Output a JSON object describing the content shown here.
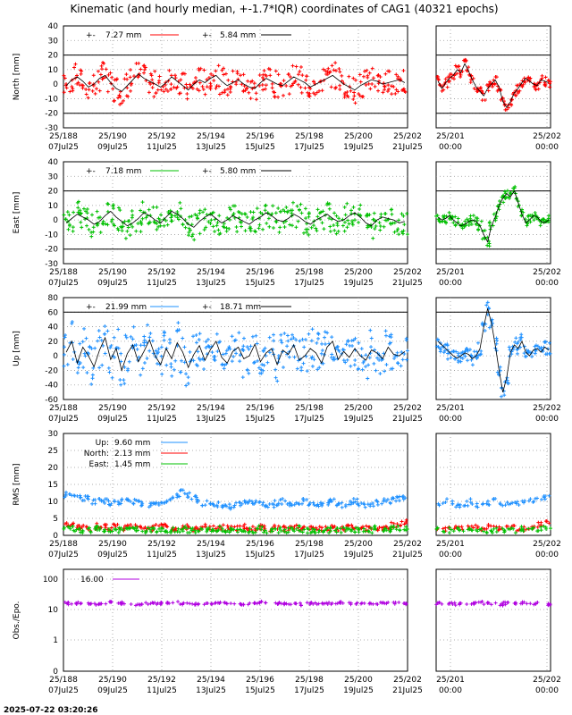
{
  "title": "Kinematic (and hourly median, +-1.7*IQR) coordinates of CAG1 (40321 epochs)",
  "timestamp": "2025-07-22 03:20:26",
  "colors": {
    "north": "#ff0000",
    "east": "#00c000",
    "up": "#1e90ff",
    "obs": "#b000e0",
    "median": "#000000"
  },
  "x_ticks_main": [
    {
      "doy": "25/188",
      "date": "07Jul25"
    },
    {
      "doy": "25/190",
      "date": "09Jul25"
    },
    {
      "doy": "25/192",
      "date": "11Jul25"
    },
    {
      "doy": "25/194",
      "date": "13Jul25"
    },
    {
      "doy": "25/196",
      "date": "15Jul25"
    },
    {
      "doy": "25/198",
      "date": "17Jul25"
    },
    {
      "doy": "25/200",
      "date": "19Jul25"
    },
    {
      "doy": "25/202",
      "date": "21Jul25"
    }
  ],
  "x_ticks_zoom": [
    {
      "doy": "25/201",
      "time": "00:00"
    },
    {
      "doy": "25/202",
      "time": "00:00"
    }
  ],
  "chart_data": [
    {
      "type": "scatter",
      "panel": "north",
      "ylabel": "North [mm]",
      "ylim": [
        -30,
        40
      ],
      "yticks": [
        "40",
        "30",
        "20",
        "10",
        "0",
        "-10",
        "-20",
        "-30"
      ],
      "xlim_days": [
        188,
        202
      ],
      "zoom_xlim_days": [
        201,
        202
      ],
      "bounds": [
        20,
        -20
      ],
      "grid": true,
      "legend": {
        "placement": "top",
        "entries": [
          {
            "sym": "+-",
            "text": "7.27 mm"
          },
          {
            "sym": "+-",
            "text": "5.84 mm"
          }
        ]
      },
      "series": [
        {
          "values": [
            -1,
            3,
            5,
            2,
            -2,
            0,
            4,
            6,
            1,
            -3,
            -5,
            -1,
            3,
            7,
            4,
            2,
            0,
            -2,
            1,
            5,
            2,
            -1,
            -4,
            0,
            3,
            1,
            4,
            6,
            2,
            -1,
            1,
            3,
            0,
            -2,
            -3,
            1,
            4,
            2,
            0,
            -1,
            2,
            5,
            3,
            1,
            -2,
            0,
            2,
            4,
            6,
            3,
            0,
            -2,
            -4,
            -1,
            1,
            3,
            2,
            0,
            1,
            2,
            3,
            1
          ],
          "spread": 9
        },
        {
          "zoom_values": [
            2,
            -3,
            1,
            4,
            6,
            10,
            8,
            14,
            9,
            3,
            -2,
            -5,
            -8,
            -3,
            0,
            3,
            -2,
            -12,
            -16,
            -12,
            -6,
            -3,
            1,
            4,
            2,
            0,
            -1,
            3,
            2,
            1
          ]
        }
      ]
    },
    {
      "type": "scatter",
      "panel": "east",
      "ylabel": "East [mm]",
      "ylim": [
        -30,
        40
      ],
      "yticks": [
        "40",
        "30",
        "20",
        "10",
        "0",
        "-10",
        "-20",
        "-30"
      ],
      "xlim_days": [
        188,
        202
      ],
      "zoom_xlim_days": [
        201,
        202
      ],
      "bounds": [
        20,
        -20
      ],
      "grid": true,
      "legend": {
        "placement": "top",
        "entries": [
          {
            "sym": "+-",
            "text": "7.18 mm"
          },
          {
            "sym": "+-",
            "text": "5.80 mm"
          }
        ]
      },
      "series": [
        {
          "values": [
            -2,
            1,
            4,
            2,
            0,
            -3,
            -1,
            3,
            6,
            2,
            -1,
            -4,
            -2,
            1,
            5,
            3,
            0,
            -2,
            2,
            6,
            4,
            1,
            -3,
            -5,
            -1,
            2,
            4,
            1,
            -2,
            0,
            3,
            1,
            -1,
            -3,
            0,
            2,
            5,
            3,
            0,
            -1,
            1,
            4,
            2,
            -1,
            -3,
            0,
            2,
            4,
            1,
            -1,
            0,
            3,
            5,
            2,
            -2,
            -4,
            0,
            2,
            1,
            0,
            -2,
            -1
          ],
          "spread": 9
        },
        {
          "zoom_values": [
            2,
            0,
            1,
            3,
            0,
            -2,
            -4,
            -3,
            -1,
            0,
            -1,
            -4,
            -10,
            -15,
            -4,
            2,
            10,
            15,
            18,
            16,
            20,
            12,
            4,
            -2,
            0,
            3,
            2,
            -1,
            -2,
            0
          ]
        }
      ]
    },
    {
      "type": "scatter",
      "panel": "up",
      "ylabel": "Up [mm]",
      "ylim": [
        -60,
        80
      ],
      "yticks": [
        "80",
        "60",
        "40",
        "20",
        "0",
        "-20",
        "-40",
        "-60"
      ],
      "xlim_days": [
        188,
        202
      ],
      "zoom_xlim_days": [
        201,
        202
      ],
      "bounds": [
        60,
        -60
      ],
      "grid": true,
      "legend": {
        "placement": "top",
        "entries": [
          {
            "sym": "+-",
            "text": "21.99 mm"
          },
          {
            "sym": "+-",
            "text": "18.71 mm"
          }
        ]
      },
      "series": [
        {
          "values": [
            5,
            20,
            -10,
            12,
            0,
            -15,
            8,
            25,
            -5,
            10,
            -20,
            3,
            15,
            -8,
            6,
            22,
            0,
            -12,
            10,
            -4,
            18,
            5,
            -16,
            2,
            14,
            -6,
            9,
            20,
            -2,
            -10,
            6,
            12,
            -4,
            0,
            16,
            -8,
            4,
            10,
            -12,
            8,
            2,
            15,
            -6,
            0,
            10,
            4,
            -10,
            12,
            20,
            -5,
            6,
            -2,
            10,
            0,
            -6,
            8,
            4,
            -4,
            12,
            2,
            0,
            6
          ],
          "spread": 28
        },
        {
          "zoom_values": [
            20,
            15,
            10,
            5,
            0,
            -3,
            0,
            4,
            2,
            -4,
            0,
            10,
            40,
            65,
            45,
            15,
            -20,
            -50,
            -30,
            5,
            15,
            10,
            20,
            5,
            0,
            8,
            10,
            5,
            12,
            8
          ]
        }
      ]
    },
    {
      "type": "scatter",
      "panel": "rms",
      "ylabel": "RMS [mm]",
      "ylim": [
        0,
        30
      ],
      "yticks": [
        "30",
        "25",
        "20",
        "15",
        "10",
        "5",
        "0"
      ],
      "xlim_days": [
        188,
        202
      ],
      "zoom_xlim_days": [
        201,
        202
      ],
      "grid": true,
      "legend": {
        "placement": "top-left",
        "entries": [
          {
            "name": "Up:",
            "text": "9.60 mm"
          },
          {
            "name": "North:",
            "text": "2.13 mm"
          },
          {
            "name": "East:",
            "text": "1.45 mm"
          }
        ]
      },
      "series": [
        {
          "name": "Up",
          "values": [
            12,
            12,
            11,
            11,
            11,
            10,
            10,
            10,
            9.5,
            9.5,
            10,
            10,
            10,
            9.5,
            9.5,
            9,
            9,
            9.5,
            10,
            11,
            12,
            13,
            12,
            11,
            10,
            9.5,
            9,
            9,
            9,
            8.5,
            8.5,
            9,
            9.5,
            10,
            10,
            9.5,
            9,
            9,
            9.5,
            10,
            9.5,
            9,
            9.5,
            10,
            9.5,
            9,
            9,
            9.5,
            10,
            9,
            9,
            9.5,
            10,
            9.5,
            9,
            9,
            9.5,
            10,
            10,
            10.5,
            11,
            11
          ]
        },
        {
          "name": "North",
          "values": [
            3,
            3,
            2.5,
            2.5,
            2,
            2.5,
            3,
            2.5,
            2,
            2.5,
            2,
            2.5,
            3,
            2.5,
            2,
            2,
            2.5,
            3,
            2.5,
            2,
            2,
            2.5,
            2.5,
            2,
            2,
            2.5,
            2,
            2,
            2.5,
            2,
            2,
            2,
            2.5,
            2,
            2,
            2.5,
            2,
            2,
            2.5,
            2,
            2,
            2.5,
            2,
            2,
            2.5,
            2,
            2,
            2,
            2.5,
            2,
            2,
            2.5,
            2,
            2,
            2,
            2.5,
            2,
            2,
            2.5,
            3,
            3.5,
            4
          ]
        },
        {
          "name": "East",
          "values": [
            2,
            2,
            2,
            1.5,
            1.5,
            2,
            2,
            1.5,
            1.5,
            1.5,
            2,
            1.5,
            1.5,
            2,
            1.5,
            1.5,
            1.5,
            2,
            1.5,
            1.5,
            1.5,
            2,
            1.5,
            1.5,
            1.5,
            1.5,
            1.5,
            1.5,
            2,
            1.5,
            1.5,
            1.5,
            1.5,
            1.5,
            1.5,
            2,
            1.5,
            1.5,
            1.5,
            1.5,
            1.5,
            1.5,
            2,
            1.5,
            1.5,
            1.5,
            1.5,
            1.5,
            2,
            1.5,
            1.5,
            1.5,
            1.5,
            1.5,
            1.5,
            1.5,
            2,
            1.5,
            1.5,
            2,
            2,
            2
          ]
        }
      ]
    },
    {
      "type": "scatter",
      "panel": "obs",
      "ylabel": "Obs./Epo.",
      "yscale": "log",
      "ylim": [
        0,
        200
      ],
      "yticks": [
        "100",
        "10",
        "1",
        "0"
      ],
      "xlim_days": [
        188,
        202
      ],
      "zoom_xlim_days": [
        201,
        202
      ],
      "grid": true,
      "legend": {
        "placement": "top-left",
        "entries": [
          {
            "text": "16.00"
          }
        ]
      },
      "series": [
        {
          "values": [
            16,
            16,
            15,
            16,
            17,
            16,
            15,
            16,
            16,
            17,
            16,
            15,
            16,
            16,
            16,
            15,
            16,
            17,
            16,
            16,
            15,
            16,
            16,
            16,
            17,
            16,
            15,
            16,
            16,
            16
          ]
        }
      ]
    }
  ]
}
